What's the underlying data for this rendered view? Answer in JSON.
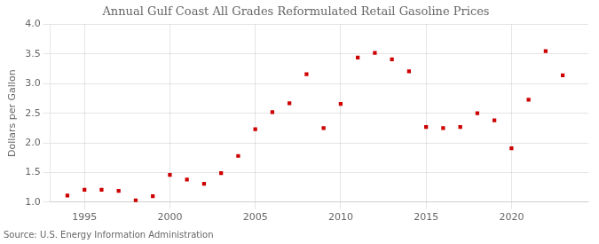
{
  "chart_data": {
    "type": "scatter",
    "title": "Annual Gulf Coast All Grades Reformulated Retail Gasoline Prices",
    "ylabel": "Dollars per Gallon",
    "annotation": "Source: U.S. Energy Information Administration",
    "x": [
      1994,
      1995,
      1996,
      1997,
      1998,
      1999,
      2000,
      2001,
      2002,
      2003,
      2004,
      2005,
      2006,
      2007,
      2008,
      2009,
      2010,
      2011,
      2012,
      2013,
      2014,
      2015,
      2016,
      2017,
      2018,
      2019,
      2020,
      2021,
      2022,
      2023
    ],
    "values": [
      1.11,
      1.21,
      1.21,
      1.19,
      1.03,
      1.1,
      1.46,
      1.38,
      1.31,
      1.49,
      1.78,
      2.23,
      2.52,
      2.67,
      3.16,
      2.25,
      2.66,
      3.44,
      3.52,
      3.41,
      3.21,
      2.27,
      2.25,
      2.27,
      2.5,
      2.38,
      1.91,
      2.73,
      3.55,
      3.14
    ],
    "color": "#cc0000",
    "marker": "square",
    "xlim": [
      1993.0,
      2024.5
    ],
    "xticks": [
      1995,
      2000,
      2005,
      2010,
      2015,
      2020
    ],
    "ylim": [
      1.0,
      4.0
    ],
    "yticks": [
      {
        "value": 1.0,
        "label": "1.0"
      },
      1.5,
      {
        "value": 2.0,
        "label": "2.0"
      },
      2.5,
      {
        "value": 3.0,
        "label": "3.0"
      },
      3.5,
      {
        "value": 4.0,
        "label": "4.0"
      }
    ],
    "grid": true
  }
}
